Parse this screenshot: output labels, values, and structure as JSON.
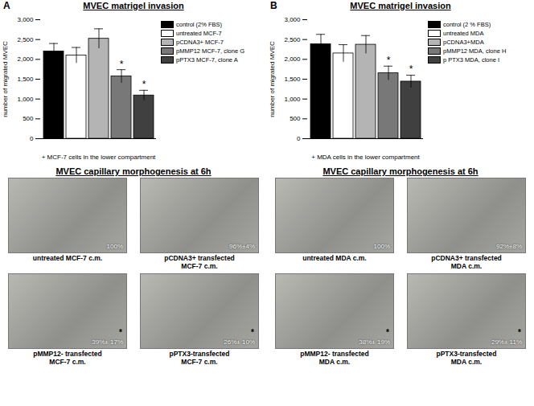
{
  "chart_data": [
    {
      "type": "bar",
      "panel": "A",
      "title": "MVEC matrigel invasion",
      "x_label": "+ MCF-7 cells in the lower compartment",
      "y_label": "number of migrated MVEC",
      "categories": [
        null
      ],
      "series": [
        {
          "name": "control (2% FBS)",
          "color": "#000000",
          "values": [
            2200
          ],
          "errors": [
            200
          ]
        },
        {
          "name": "untreated MCF-7",
          "color": "#ffffff",
          "values": [
            2100
          ],
          "errors": [
            200
          ]
        },
        {
          "name": "pCDNA3+ MCF-7",
          "color": "#b4b4b4",
          "values": [
            2520
          ],
          "errors": [
            250
          ]
        },
        {
          "name": "pMMP12 MCF-7, clone G",
          "color": "#787878",
          "values": [
            1570
          ],
          "errors": [
            170
          ],
          "annotation": "*"
        },
        {
          "name": "pPTX3 MCF-7, clone A",
          "color": "#404040",
          "values": [
            1090
          ],
          "errors": [
            130
          ],
          "annotation": "*"
        }
      ],
      "ylim": [
        0,
        3000
      ],
      "yticks": [
        0,
        500,
        1000,
        1500,
        2000,
        2500,
        3000
      ],
      "grid": false,
      "legend": "top-right",
      "tick_labels": "y"
    },
    {
      "type": "bar",
      "panel": "B",
      "title": "MVEC matrigel invasion",
      "x_label": "+ MDA cells in the lower compartment",
      "y_label": "number of migrated MVEC",
      "categories": [
        null
      ],
      "series": [
        {
          "name": "control (2 % FBS)",
          "color": "#000000",
          "values": [
            2380
          ],
          "errors": [
            250
          ]
        },
        {
          "name": "untreated MDA",
          "color": "#ffffff",
          "values": [
            2150
          ],
          "errors": [
            220
          ]
        },
        {
          "name": "pCDNA3+MDA",
          "color": "#b4b4b4",
          "values": [
            2370
          ],
          "errors": [
            230
          ]
        },
        {
          "name": "pMMP12 MDA, clone H",
          "color": "#787878",
          "values": [
            1650
          ],
          "errors": [
            180
          ],
          "annotation": "*"
        },
        {
          "name": "p PTX3 MDA, clone I",
          "color": "#404040",
          "values": [
            1440
          ],
          "errors": [
            160
          ],
          "annotation": "*"
        }
      ],
      "ylim": [
        0,
        3000
      ],
      "yticks": [
        0,
        500,
        1000,
        1500,
        2000,
        2500,
        3000
      ],
      "grid": false,
      "legend": "top-right",
      "tick_labels": "y"
    }
  ],
  "morphogenesis": [
    {
      "title": "MVEC capillary morphogenesis at 6h",
      "images": [
        {
          "caption": [
            "untreated MCF-7 c.m."
          ],
          "value": 100,
          "label": "100%"
        },
        {
          "caption": [
            "pCDNA3+ transfected",
            "MCF-7 c.m."
          ],
          "value": 96,
          "error": 4,
          "label": "96%±4%"
        },
        {
          "caption": [
            "pMMP12- transfected",
            "MCF-7 c.m."
          ],
          "value": 39,
          "error": 17,
          "label": "39%± 17%",
          "annotation": "*"
        },
        {
          "caption": [
            "pPTX3-transfected",
            "MCF-7 c.m."
          ],
          "value": 26,
          "error": 10,
          "label": "26%± 10%",
          "annotation": "*"
        }
      ]
    },
    {
      "title": "MVEC capillary morphogenesis at 6h",
      "images": [
        {
          "caption": [
            "untreated MDA c.m."
          ],
          "value": 100,
          "label": "100%"
        },
        {
          "caption": [
            "pCDNA3+ transfected",
            "MDA c.m."
          ],
          "value": 92,
          "error": 8,
          "label": "92%±8%"
        },
        {
          "caption": [
            "pMMP12- transfected",
            "MDA c.m."
          ],
          "value": 38,
          "error": 19,
          "label": "38%± 19%",
          "annotation": "*"
        },
        {
          "caption": [
            "pPTX3-transfected",
            "MDA c.m."
          ],
          "value": 29,
          "error": 11,
          "label": "29%± 11%",
          "annotation": "*"
        }
      ]
    }
  ]
}
